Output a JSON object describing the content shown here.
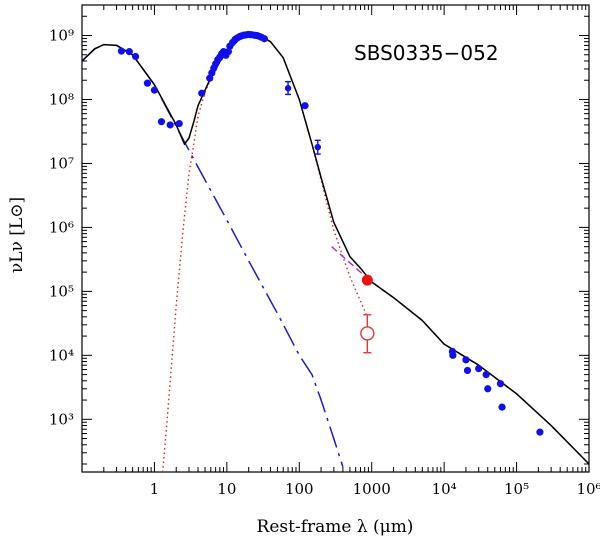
{
  "chart_data": {
    "type": "scatter",
    "title": "SBS0335−052",
    "xlabel": "Rest-frame λ (μm)",
    "ylabel": "νLν [L⊙]",
    "xscale": "log",
    "yscale": "log",
    "xlim": [
      0.1,
      1000000
    ],
    "ylim": [
      150,
      3000000000
    ],
    "x_ticks": [
      {
        "value": 1,
        "label": "1"
      },
      {
        "value": 10,
        "label": "10"
      },
      {
        "value": 100,
        "label": "100"
      },
      {
        "value": 1000,
        "label": "1000"
      },
      {
        "value": 10000,
        "label": "10⁴"
      },
      {
        "value": 100000,
        "label": "10⁵"
      },
      {
        "value": 1000000,
        "label": "10⁶"
      }
    ],
    "y_ticks": [
      {
        "value": 1000,
        "label": "10³"
      },
      {
        "value": 10000,
        "label": "10⁴"
      },
      {
        "value": 100000,
        "label": "10⁵"
      },
      {
        "value": 1000000,
        "label": "10⁶"
      },
      {
        "value": 10000000,
        "label": "10⁷"
      },
      {
        "value": 100000000,
        "label": "10⁸"
      },
      {
        "value": 1000000000,
        "label": "10⁹"
      }
    ],
    "colors": {
      "data": "#1010ee",
      "detection": "#ee1111",
      "upper_limit": "#ee3333",
      "stellar": "#1a1add",
      "dust": "#dd2222",
      "radio": "#bb22cc",
      "total": "#000000"
    },
    "series": [
      {
        "name": "observed photometry",
        "style": "points",
        "points": [
          [
            0.35,
            570000000
          ],
          [
            0.45,
            560000000
          ],
          [
            0.55,
            470000000
          ],
          [
            0.8,
            180000000
          ],
          [
            1.0,
            140000000
          ],
          [
            1.25,
            45000000
          ],
          [
            1.65,
            40000000
          ],
          [
            2.2,
            42000000
          ],
          [
            4.5,
            125000000
          ],
          [
            5.8,
            215000000
          ],
          [
            6.2,
            260000000
          ],
          [
            6.6,
            310000000
          ],
          [
            7.0,
            360000000
          ],
          [
            7.5,
            420000000
          ],
          [
            8.0,
            460000000
          ],
          [
            8.5,
            520000000
          ],
          [
            9.0,
            560000000
          ],
          [
            9.7,
            490000000
          ],
          [
            10.5,
            560000000
          ],
          [
            11.0,
            680000000
          ],
          [
            12.0,
            780000000
          ],
          [
            13.0,
            870000000
          ],
          [
            14.0,
            920000000
          ],
          [
            15.0,
            960000000
          ],
          [
            16.0,
            990000000
          ],
          [
            17.0,
            1010000000
          ],
          [
            18.0,
            1020000000
          ],
          [
            19.0,
            1030000000
          ],
          [
            20.0,
            1040000000
          ],
          [
            21.0,
            1030000000
          ],
          [
            22.0,
            1030000000
          ],
          [
            24.0,
            1010000000
          ],
          [
            26.0,
            1000000000
          ],
          [
            28.0,
            970000000
          ],
          [
            30.0,
            940000000
          ],
          [
            33.0,
            890000000
          ],
          [
            120.0,
            80000000
          ],
          [
            13000,
            11500
          ],
          [
            13200,
            10000
          ],
          [
            20000,
            8500
          ],
          [
            21000,
            5800
          ],
          [
            30000,
            6200
          ],
          [
            38000,
            5000
          ],
          [
            40000,
            3000
          ],
          [
            60000,
            3600
          ],
          [
            63000,
            1550
          ],
          [
            210000,
            630
          ]
        ]
      },
      {
        "name": "points with error bars",
        "style": "errorbars",
        "points": [
          {
            "x": 70,
            "y": 150000000,
            "ylo": 120000000,
            "yhi": 190000000
          },
          {
            "x": 180,
            "y": 18000000,
            "ylo": 14000000,
            "yhi": 23000000
          }
        ]
      },
      {
        "name": "submm detection",
        "style": "filled-circle",
        "points": [
          [
            870,
            150000
          ]
        ]
      },
      {
        "name": "submm flux (open)",
        "style": "open-circle-errorbar",
        "points": [
          {
            "x": 870,
            "y": 22000,
            "ylo": 11000,
            "yhi": 43000
          }
        ]
      },
      {
        "name": "stellar component",
        "style": "dashed-line",
        "points": [
          [
            0.1,
            400000000
          ],
          [
            0.15,
            620000000
          ],
          [
            0.2,
            720000000
          ],
          [
            0.3,
            700000000
          ],
          [
            0.5,
            500000000
          ],
          [
            1.0,
            170000000
          ],
          [
            2.0,
            38000000
          ],
          [
            3.0,
            16000000
          ],
          [
            5.0,
            5500000
          ],
          [
            10.0,
            1300000
          ],
          [
            20.0,
            300000
          ],
          [
            50.0,
            45000
          ],
          [
            100.0,
            10000
          ],
          [
            150.0,
            5000
          ],
          [
            200.0,
            2000
          ],
          [
            300.0,
            500
          ],
          [
            400.0,
            180
          ]
        ]
      },
      {
        "name": "dust component",
        "style": "dotted-line",
        "points": [
          [
            1.3,
            150
          ],
          [
            1.5,
            1000
          ],
          [
            2.0,
            60000
          ],
          [
            2.5,
            1000000
          ],
          [
            3.0,
            7000000
          ],
          [
            3.5,
            20000000
          ],
          [
            4.0,
            55000000
          ],
          [
            5.0,
            130000000
          ],
          [
            6.0,
            210000000
          ],
          [
            8.0,
            380000000
          ],
          [
            10.0,
            550000000
          ],
          [
            15.0,
            880000000
          ],
          [
            20.0,
            1010000000
          ],
          [
            25.0,
            1020000000
          ],
          [
            30.0,
            960000000
          ],
          [
            40.0,
            800000000
          ],
          [
            60.0,
            450000000
          ],
          [
            100.0,
            100000000
          ],
          [
            150.0,
            20000000
          ],
          [
            200.0,
            5500000
          ],
          [
            300.0,
            900000
          ],
          [
            500.0,
            170000
          ],
          [
            870.0,
            40000
          ]
        ]
      },
      {
        "name": "radio component",
        "style": "dashed-line",
        "points": [
          [
            280,
            500000
          ],
          [
            500,
            280000
          ],
          [
            700,
            200000
          ],
          [
            1000,
            140000
          ],
          [
            2000,
            80000
          ],
          [
            5000,
            35000
          ],
          [
            10000,
            15000
          ],
          [
            30000,
            7000
          ],
          [
            100000,
            2500
          ],
          [
            300000,
            800
          ],
          [
            1000000,
            200
          ]
        ]
      },
      {
        "name": "total model",
        "style": "solid-line",
        "points": [
          [
            0.1,
            400000000
          ],
          [
            0.15,
            620000000
          ],
          [
            0.2,
            720000000
          ],
          [
            0.3,
            700000000
          ],
          [
            0.5,
            500000000
          ],
          [
            1.0,
            170000000
          ],
          [
            2.0,
            40000000
          ],
          [
            2.6,
            20000000
          ],
          [
            3.0,
            25000000
          ],
          [
            3.5,
            45000000
          ],
          [
            4.0,
            80000000
          ],
          [
            5.0,
            140000000
          ],
          [
            6.0,
            220000000
          ],
          [
            8.0,
            390000000
          ],
          [
            10.0,
            560000000
          ],
          [
            15.0,
            880000000
          ],
          [
            20.0,
            1010000000
          ],
          [
            25.0,
            1020000000
          ],
          [
            30.0,
            960000000
          ],
          [
            40.0,
            800000000
          ],
          [
            60.0,
            450000000
          ],
          [
            100.0,
            100000000
          ],
          [
            150.0,
            20000000
          ],
          [
            200.0,
            6000000
          ],
          [
            300.0,
            1200000
          ],
          [
            500.0,
            350000
          ],
          [
            700.0,
            230000
          ],
          [
            1000.0,
            140000
          ],
          [
            2000.0,
            80000
          ],
          [
            5000.0,
            35000
          ],
          [
            10000.0,
            15000
          ],
          [
            30000.0,
            7000
          ],
          [
            100000.0,
            2500
          ],
          [
            300000.0,
            800
          ],
          [
            1000000.0,
            200
          ]
        ]
      }
    ]
  }
}
